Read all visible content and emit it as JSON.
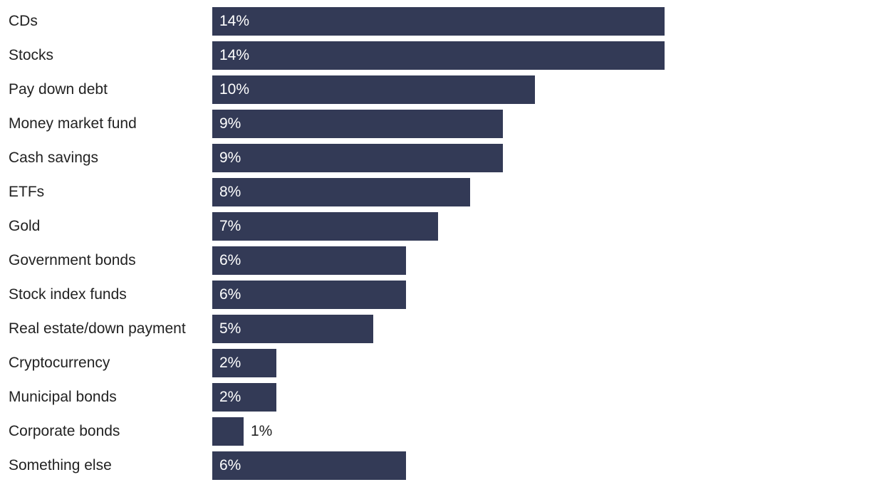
{
  "chart_data": {
    "type": "bar",
    "orientation": "horizontal",
    "categories": [
      "CDs",
      "Stocks",
      "Pay down debt",
      "Money market fund",
      "Cash savings",
      "ETFs",
      "Gold",
      "Government bonds",
      "Stock index funds",
      "Real estate/down payment",
      "Cryptocurrency",
      "Municipal bonds",
      "Corporate bonds",
      "Something else"
    ],
    "values": [
      14,
      14,
      10,
      9,
      9,
      8,
      7,
      6,
      6,
      5,
      2,
      2,
      1,
      6
    ],
    "value_labels": [
      "14%",
      "14%",
      "10%",
      "9%",
      "9%",
      "8%",
      "7%",
      "6%",
      "6%",
      "5%",
      "2%",
      "2%",
      "1%",
      "6%"
    ],
    "xlim": [
      0,
      14
    ],
    "grid": false,
    "legend": "none",
    "bar_color": "#333a56",
    "label_inside_color": "#ffffff",
    "label_outside_color": "#222222"
  }
}
